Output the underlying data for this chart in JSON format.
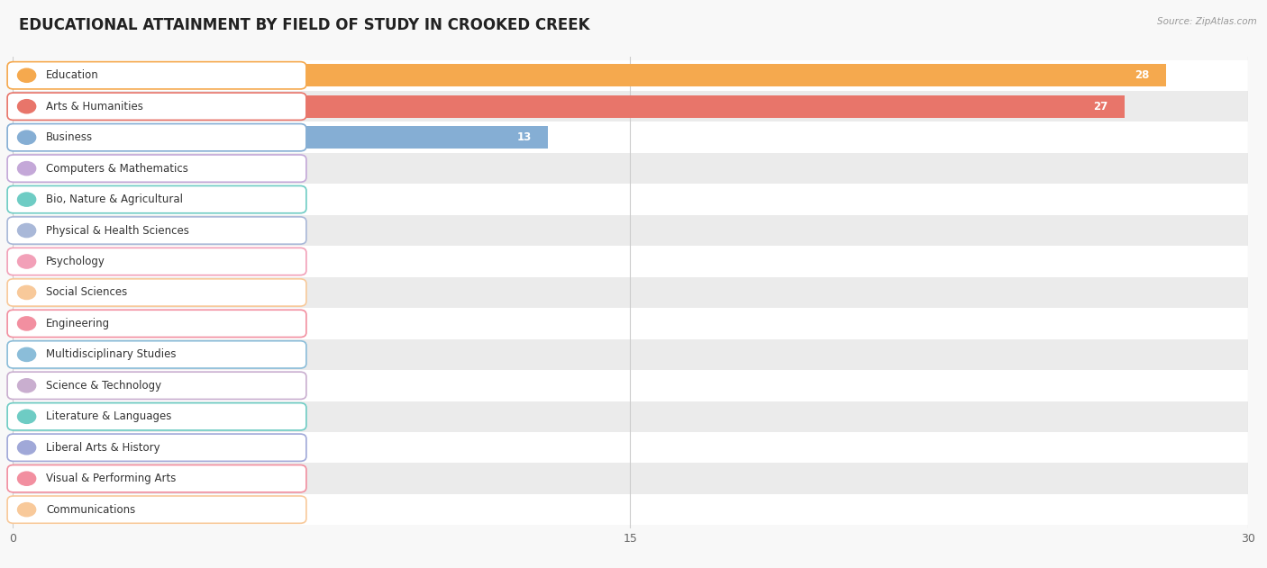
{
  "title": "EDUCATIONAL ATTAINMENT BY FIELD OF STUDY IN CROOKED CREEK",
  "source": "Source: ZipAtlas.com",
  "categories": [
    "Education",
    "Arts & Humanities",
    "Business",
    "Computers & Mathematics",
    "Bio, Nature & Agricultural",
    "Physical & Health Sciences",
    "Psychology",
    "Social Sciences",
    "Engineering",
    "Multidisciplinary Studies",
    "Science & Technology",
    "Literature & Languages",
    "Liberal Arts & History",
    "Visual & Performing Arts",
    "Communications"
  ],
  "values": [
    28,
    27,
    13,
    0,
    0,
    0,
    0,
    0,
    0,
    0,
    0,
    0,
    0,
    0,
    0
  ],
  "bar_colors": [
    "#F5A94E",
    "#E8756A",
    "#85AED4",
    "#C4A8D8",
    "#6ECCC4",
    "#A9B8D8",
    "#F2A0B8",
    "#F8C99A",
    "#F28FA0",
    "#8BBDD9",
    "#C9AECF",
    "#6ECCC4",
    "#A0A8D8",
    "#F28FA0",
    "#F8C99A"
  ],
  "xlim": [
    0,
    30
  ],
  "xticks": [
    0,
    15,
    30
  ],
  "background_color": "#f8f8f8",
  "title_fontsize": 12,
  "label_fontsize": 8.5,
  "value_fontsize": 8.5
}
